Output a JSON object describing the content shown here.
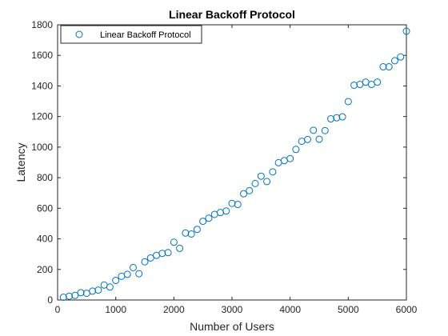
{
  "chart_data": {
    "type": "scatter",
    "title": "Linear Backoff Protocol",
    "xlabel": "Number of Users",
    "ylabel": "Latency",
    "xlim": [
      0,
      6000
    ],
    "ylim": [
      0,
      1800
    ],
    "xticks": [
      0,
      1000,
      2000,
      3000,
      4000,
      5000,
      6000
    ],
    "yticks": [
      0,
      200,
      400,
      600,
      800,
      1000,
      1200,
      1400,
      1600,
      1800
    ],
    "grid": false,
    "legend_position": "top-left",
    "marker": "circle-open",
    "marker_color": "#0072BD",
    "series": [
      {
        "name": "Linear Backoff Protocol",
        "x": [
          100,
          200,
          300,
          400,
          500,
          600,
          700,
          800,
          900,
          1000,
          1100,
          1200,
          1300,
          1400,
          1500,
          1600,
          1700,
          1800,
          1900,
          2000,
          2100,
          2200,
          2300,
          2400,
          2500,
          2600,
          2700,
          2800,
          2900,
          3000,
          3100,
          3200,
          3300,
          3400,
          3500,
          3600,
          3700,
          3800,
          3900,
          4000,
          4100,
          4200,
          4300,
          4400,
          4500,
          4600,
          4700,
          4800,
          4900,
          5000,
          5100,
          5200,
          5300,
          5400,
          5500,
          5600,
          5700,
          5800,
          5900,
          6000
        ],
        "y": [
          18,
          25,
          30,
          48,
          44,
          58,
          65,
          98,
          85,
          128,
          155,
          168,
          212,
          172,
          250,
          275,
          292,
          305,
          310,
          378,
          338,
          438,
          432,
          462,
          515,
          535,
          560,
          572,
          582,
          632,
          625,
          695,
          715,
          762,
          810,
          775,
          838,
          898,
          912,
          925,
          985,
          1038,
          1050,
          1110,
          1052,
          1108,
          1185,
          1192,
          1198,
          1298,
          1405,
          1410,
          1425,
          1410,
          1425,
          1525,
          1525,
          1565,
          1590,
          1758
        ]
      }
    ]
  }
}
